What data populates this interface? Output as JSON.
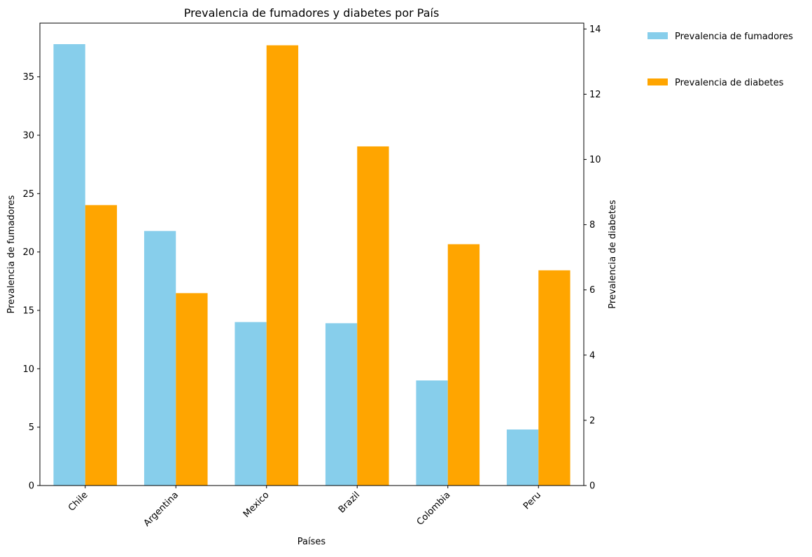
{
  "chart_data": {
    "type": "bar",
    "title": "Prevalencia de fumadores y diabetes por País",
    "xlabel": "Países",
    "ylabel_left": "Prevalencia de fumadores",
    "ylabel_right": "Prevalencia de diabetes",
    "categories": [
      "Chile",
      "Argentina",
      "Mexico",
      "Brazil",
      "Colombia",
      "Peru"
    ],
    "series": [
      {
        "name": "Prevalencia de fumadores",
        "axis": "left",
        "color": "#87CEEB",
        "values": [
          37.8,
          21.8,
          14.0,
          13.9,
          9.0,
          4.8
        ]
      },
      {
        "name": "Prevalencia de diabetes",
        "axis": "right",
        "color": "#FFA500",
        "values": [
          8.6,
          5.9,
          13.5,
          10.4,
          7.4,
          6.6
        ]
      }
    ],
    "ylim_left": [
      0,
      39.6
    ],
    "ylim_right": [
      0,
      14.18
    ],
    "yticks_left": [
      0,
      5,
      10,
      15,
      20,
      25,
      30,
      35
    ],
    "yticks_right": [
      0,
      2,
      4,
      6,
      8,
      10,
      12,
      14
    ],
    "grid": false,
    "legend_position": "outside top-right"
  }
}
